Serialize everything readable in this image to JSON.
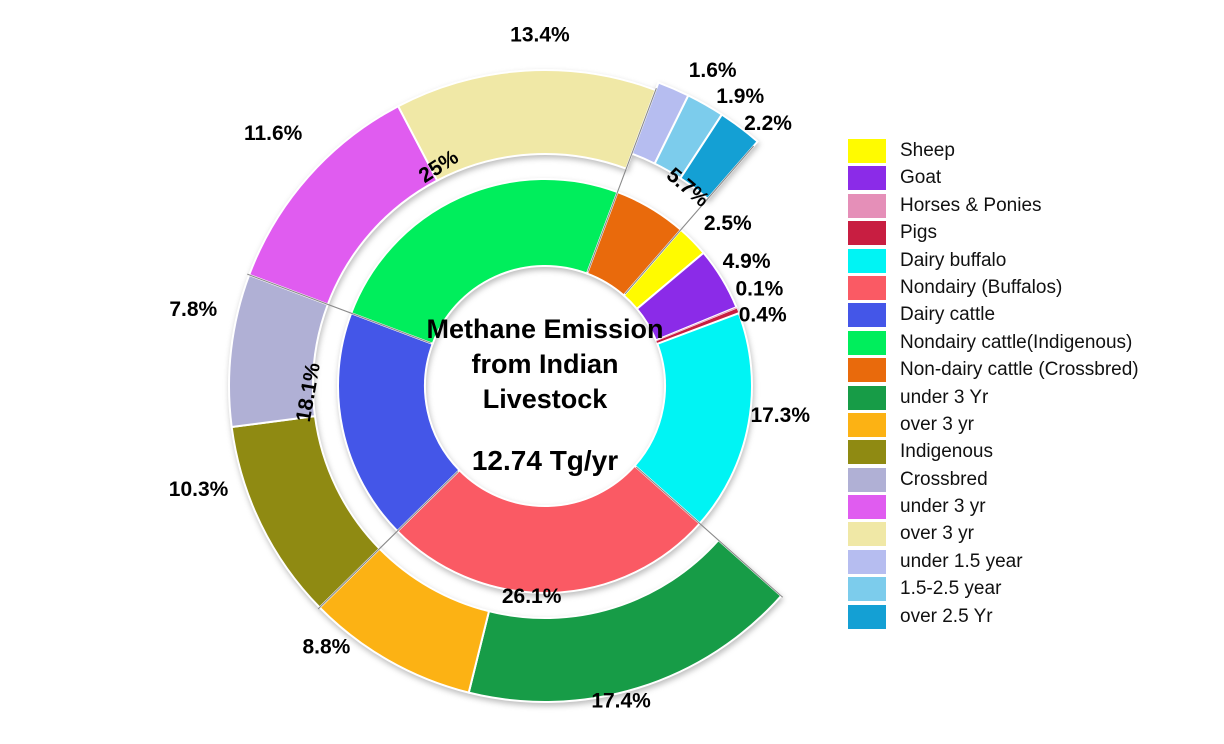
{
  "chart_data": {
    "type": "pie",
    "subtype": "two-ring sunburst donut",
    "title": "Methane Emission from Indian Livestock",
    "title_lines": [
      "Methane Emission",
      "from Indian",
      "Livestock"
    ],
    "center_value": "12.74 Tg/yr",
    "total_value": 12.74,
    "units": "Tg/yr",
    "start_angle_deg": 41,
    "direction": "clockwise",
    "grid": false,
    "legend_position": "right",
    "inner_ring": [
      {
        "label": "Sheep",
        "pct": 2.5,
        "pct_label": "2.5%",
        "color": "#FFFB00"
      },
      {
        "label": "Goat",
        "pct": 4.9,
        "pct_label": "4.9%",
        "color": "#8B2BE8"
      },
      {
        "label": "Horses & Ponies",
        "pct": 0.1,
        "pct_label": "0.1%",
        "color": "#E58FB8"
      },
      {
        "label": "Pigs",
        "pct": 0.4,
        "pct_label": "0.4%",
        "color": "#C81E41"
      },
      {
        "label": "Dairy buffalo",
        "pct": 17.3,
        "pct_label": "17.3%",
        "color": "#00F4F4"
      },
      {
        "label": "Nondairy (Buffalos)",
        "pct": 26.1,
        "pct_label": "26.1%",
        "color": "#FA5A64"
      },
      {
        "label": "Dairy cattle",
        "pct": 18.1,
        "pct_label": "18.1%",
        "color": "#4456E8"
      },
      {
        "label": "Nondairy cattle(Indigenous)",
        "pct": 25.0,
        "pct_label": "25%",
        "color": "#00EE5C"
      },
      {
        "label": "Non-dairy cattle (Crossbred)",
        "pct": 5.7,
        "pct_label": "5.7%",
        "color": "#E96A0C"
      }
    ],
    "outer_ring": [
      {
        "label": "under 3 Yr",
        "pct": 17.4,
        "pct_label": "17.4%",
        "color": "#179C47",
        "parent": "Nondairy (Buffalos)"
      },
      {
        "label": "over 3 yr",
        "pct": 8.8,
        "pct_label": "8.8%",
        "color": "#FCB214",
        "parent": "Nondairy (Buffalos)"
      },
      {
        "label": "Indigenous",
        "pct": 10.3,
        "pct_label": "10.3%",
        "color": "#8F8A12",
        "parent": "Dairy cattle"
      },
      {
        "label": "Crossbred",
        "pct": 7.8,
        "pct_label": "7.8%",
        "color": "#B0B0D5",
        "parent": "Dairy cattle"
      },
      {
        "label": "under 3 yr",
        "pct": 11.6,
        "pct_label": "11.6%",
        "color": "#E05CF0",
        "parent": "Nondairy cattle(Indigenous)"
      },
      {
        "label": "over 3 yr",
        "pct": 13.4,
        "pct_label": "13.4%",
        "color": "#F0E8A6",
        "parent": "Nondairy cattle(Indigenous)"
      },
      {
        "label": "under 1.5 year",
        "pct": 1.6,
        "pct_label": "1.6%",
        "color": "#B6BDF0",
        "parent": "Non-dairy cattle (Crossbred)"
      },
      {
        "label": "1.5-2.5 year",
        "pct": 1.9,
        "pct_label": "1.9%",
        "color": "#7CCCEC",
        "parent": "Non-dairy cattle (Crossbred)"
      },
      {
        "label": "over 2.5 Yr",
        "pct": 2.2,
        "pct_label": "2.2%",
        "color": "#14A0D4",
        "parent": "Non-dairy cattle (Crossbred)"
      }
    ],
    "legend": [
      {
        "label": "Sheep",
        "color": "#FFFB00"
      },
      {
        "label": "Goat",
        "color": "#8B2BE8"
      },
      {
        "label": "Horses & Ponies",
        "color": "#E58FB8"
      },
      {
        "label": "Pigs",
        "color": "#C81E41"
      },
      {
        "label": "Dairy buffalo",
        "color": "#00F4F4"
      },
      {
        "label": "Nondairy (Buffalos)",
        "color": "#FA5A64"
      },
      {
        "label": "Dairy cattle",
        "color": "#4456E8"
      },
      {
        "label": "Nondairy cattle(Indigenous)",
        "color": "#00EE5C"
      },
      {
        "label": "Non-dairy cattle (Crossbred)",
        "color": "#E96A0C"
      },
      {
        "label": "under 3 Yr",
        "color": "#179C47"
      },
      {
        "label": "over 3 yr",
        "color": "#FCB214"
      },
      {
        "label": "Indigenous",
        "color": "#8F8A12"
      },
      {
        "label": "Crossbred",
        "color": "#B0B0D5"
      },
      {
        "label": "under 3 yr",
        "color": "#E05CF0"
      },
      {
        "label": "over 3 yr",
        "color": "#F0E8A6"
      },
      {
        "label": "under 1.5 year",
        "color": "#B6BDF0"
      },
      {
        "label": "1.5-2.5 year",
        "color": "#7CCCEC"
      },
      {
        "label": "over 2.5 Yr",
        "color": "#14A0D4"
      }
    ]
  }
}
